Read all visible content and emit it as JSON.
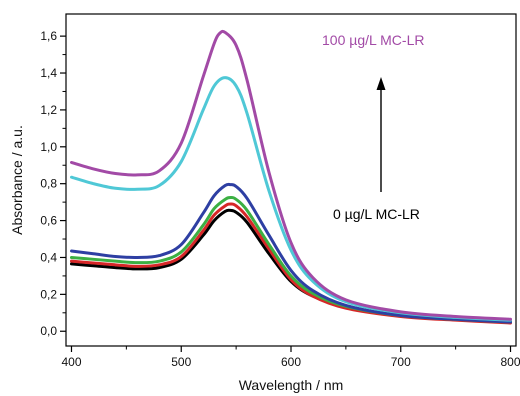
{
  "chart_data": {
    "type": "line",
    "xlabel": "Wavelength / nm",
    "ylabel": "Absorbance / a.u.",
    "xlim": [
      395,
      805
    ],
    "ylim": [
      -0.08,
      1.72
    ],
    "x_ticks": [
      400,
      500,
      600,
      700,
      800
    ],
    "x_tick_labels": [
      "400",
      "500",
      "600",
      "700",
      "800"
    ],
    "y_ticks": [
      0.0,
      0.2,
      0.4,
      0.6,
      0.8,
      1.0,
      1.2,
      1.4,
      1.6
    ],
    "y_tick_labels": [
      "0,0",
      "0,2",
      "0,4",
      "0,6",
      "0,8",
      "1,0",
      "1,2",
      "1,4",
      "1,6"
    ],
    "grid": false,
    "series": [
      {
        "color": "#000000",
        "x": [
          400,
          420,
          440,
          460,
          480,
          500,
          520,
          530,
          540,
          545,
          550,
          560,
          580,
          600,
          620,
          650,
          700,
          750,
          800
        ],
        "values": [
          0.365,
          0.355,
          0.345,
          0.338,
          0.345,
          0.39,
          0.52,
          0.6,
          0.65,
          0.655,
          0.645,
          0.59,
          0.42,
          0.27,
          0.19,
          0.13,
          0.085,
          0.065,
          0.05
        ]
      },
      {
        "color": "#d62728",
        "x": [
          400,
          420,
          440,
          460,
          480,
          500,
          520,
          530,
          540,
          545,
          550,
          560,
          580,
          600,
          620,
          650,
          700,
          750,
          800
        ],
        "values": [
          0.38,
          0.37,
          0.36,
          0.352,
          0.36,
          0.405,
          0.545,
          0.63,
          0.68,
          0.69,
          0.68,
          0.62,
          0.445,
          0.28,
          0.19,
          0.125,
          0.08,
          0.06,
          0.045
        ]
      },
      {
        "color": "#3cb043",
        "x": [
          400,
          420,
          440,
          460,
          480,
          500,
          520,
          530,
          540,
          545,
          550,
          560,
          580,
          600,
          620,
          650,
          700,
          750,
          800
        ],
        "values": [
          0.4,
          0.39,
          0.38,
          0.372,
          0.38,
          0.43,
          0.575,
          0.665,
          0.715,
          0.725,
          0.715,
          0.655,
          0.47,
          0.3,
          0.205,
          0.135,
          0.085,
          0.065,
          0.05
        ]
      },
      {
        "color": "#2e3fa3",
        "x": [
          400,
          420,
          440,
          460,
          480,
          500,
          520,
          530,
          540,
          545,
          550,
          560,
          580,
          600,
          620,
          650,
          700,
          750,
          800
        ],
        "values": [
          0.435,
          0.42,
          0.405,
          0.4,
          0.41,
          0.47,
          0.64,
          0.735,
          0.79,
          0.795,
          0.785,
          0.72,
          0.52,
          0.33,
          0.22,
          0.14,
          0.085,
          0.065,
          0.05
        ]
      },
      {
        "color": "#4fc8d6",
        "x": [
          400,
          420,
          440,
          460,
          480,
          500,
          520,
          530,
          540,
          550,
          560,
          580,
          600,
          620,
          650,
          700,
          750,
          800
        ],
        "values": [
          0.835,
          0.8,
          0.775,
          0.77,
          0.79,
          0.92,
          1.2,
          1.33,
          1.375,
          1.33,
          1.18,
          0.76,
          0.44,
          0.27,
          0.16,
          0.1,
          0.075,
          0.06
        ]
      },
      {
        "color": "#a24aa6",
        "x": [
          400,
          420,
          440,
          460,
          480,
          500,
          520,
          530,
          535,
          540,
          550,
          560,
          580,
          600,
          620,
          650,
          700,
          750,
          800
        ],
        "values": [
          0.915,
          0.88,
          0.855,
          0.848,
          0.87,
          1.02,
          1.38,
          1.56,
          1.615,
          1.62,
          1.55,
          1.36,
          0.86,
          0.48,
          0.29,
          0.17,
          0.105,
          0.08,
          0.065
        ]
      }
    ],
    "annotations": {
      "top_label": "100 µg/L MC-LR",
      "top_label_color": "#a24aa6",
      "bottom_label": "0 µg/L MC-LR",
      "bottom_label_color": "#000000",
      "arrow": "up"
    }
  }
}
